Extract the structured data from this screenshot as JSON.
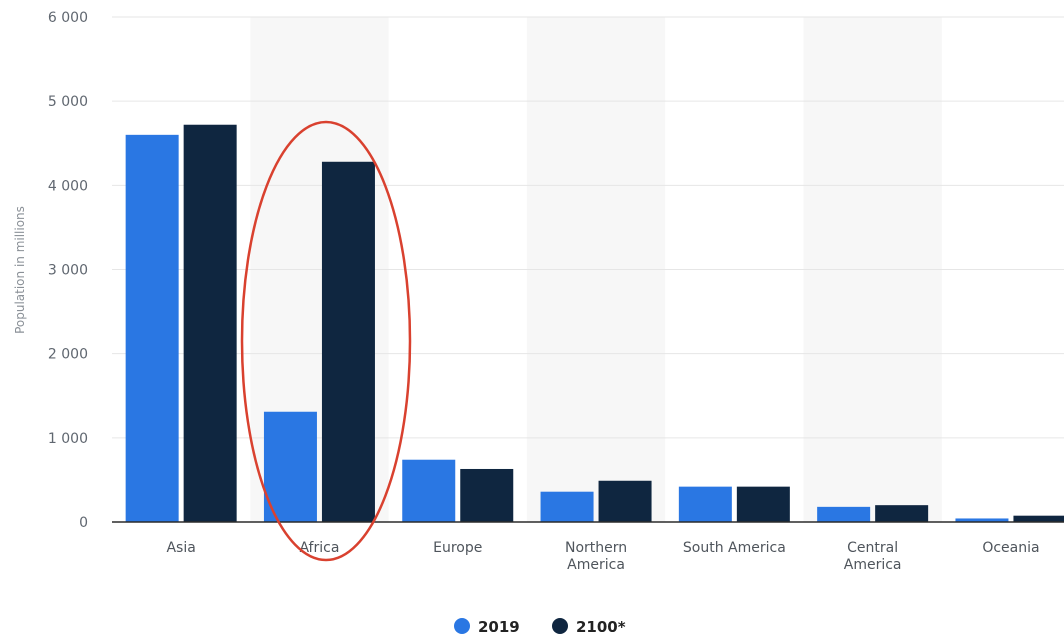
{
  "chart_data": {
    "type": "bar",
    "ylabel": "Population in millions",
    "ylim": [
      0,
      6000
    ],
    "y_ticks": [
      "0",
      "1 000",
      "2 000",
      "3 000",
      "4 000",
      "5 000",
      "6 000"
    ],
    "y_tick_values": [
      0,
      1000,
      2000,
      3000,
      4000,
      5000,
      6000
    ],
    "categories": [
      [
        "Asia"
      ],
      [
        "Africa"
      ],
      [
        "Europe"
      ],
      [
        "Northern",
        "America"
      ],
      [
        "South America"
      ],
      [
        "Central",
        "America"
      ],
      [
        "Oceania"
      ]
    ],
    "series": [
      {
        "name": "2019",
        "color": "#2a77e3",
        "values": [
          4600,
          1310,
          740,
          360,
          420,
          180,
          42
        ]
      },
      {
        "name": "2100*",
        "color": "#0f2640",
        "values": [
          4720,
          4280,
          630,
          490,
          420,
          200,
          75
        ]
      }
    ],
    "grid": true,
    "legend_position": "bottom-center",
    "alternate_band_color": "#f7f7f7",
    "highlight_color": "#d9412f"
  }
}
